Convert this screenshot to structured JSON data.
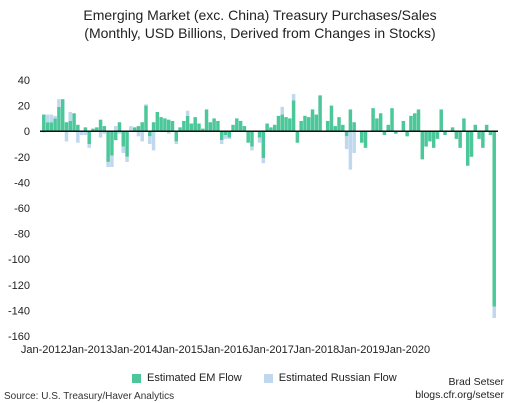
{
  "chart_data": {
    "type": "bar",
    "title": "Emerging Market (exc. China) Treasury Purchases/Sales",
    "subtitle": "(Monthly, USD Billions, Derived from Changes in Stocks)",
    "xlabel": "",
    "ylabel": "",
    "ylim": [
      -160,
      40
    ],
    "yticks": [
      40,
      20,
      0,
      -20,
      -40,
      -60,
      -80,
      -100,
      -120,
      -140,
      -160
    ],
    "xtick_labels": [
      "Jan-2012",
      "Jan-2013",
      "Jan-2014",
      "Jan-2015",
      "Jan-2016",
      "Jan-2017",
      "Jan-2018",
      "Jan-2019",
      "Jan-2020"
    ],
    "grid": false,
    "legend_position": "bottom",
    "colors": {
      "em": "#4cc79a",
      "russia": "#bfd8ee",
      "zero_line": "#111111"
    },
    "start_month": "Jan-2012",
    "series": [
      {
        "name": "Estimated EM Flow",
        "values": [
          13,
          7,
          7,
          10,
          19,
          25,
          7,
          8,
          14,
          5,
          0,
          3,
          -10,
          2,
          3,
          9,
          4,
          -24,
          -19,
          -7,
          7,
          -12,
          -20,
          0,
          3,
          4,
          7,
          20,
          -4,
          7,
          15,
          11,
          10,
          9,
          8,
          -8,
          3,
          8,
          12,
          6,
          11,
          6,
          2,
          17,
          7,
          10,
          8,
          -7,
          -3,
          -5,
          5,
          10,
          8,
          4,
          -9,
          -12,
          0,
          -5,
          -21,
          6,
          3,
          5,
          12,
          13,
          11,
          10,
          24,
          -9,
          8,
          12,
          11,
          17,
          13,
          28,
          0,
          8,
          20,
          4,
          11,
          5,
          -4,
          17,
          7,
          0,
          -9,
          -13,
          0,
          18,
          10,
          14,
          -3,
          5,
          18,
          -2,
          0,
          8,
          -4,
          12,
          14,
          17,
          -22,
          -12,
          -8,
          -13,
          -6,
          17,
          -3,
          0,
          3,
          -6,
          -13,
          10,
          -27,
          -20,
          5,
          -6,
          -13,
          5,
          -3,
          -137
        ]
      },
      {
        "name": "Estimated Russian Flow",
        "values": [
          -1,
          6,
          6,
          2,
          6,
          0,
          -8,
          7,
          0,
          -9,
          -3,
          -3,
          -3,
          0,
          0,
          -5,
          -2,
          -4,
          -9,
          4,
          -2,
          -5,
          -4,
          4,
          0,
          -4,
          -8,
          1,
          -6,
          -15,
          0,
          0,
          0,
          -2,
          0,
          -2,
          0,
          0,
          4,
          0,
          0,
          0,
          0,
          0,
          0,
          0,
          0,
          -3,
          -3,
          -1,
          0,
          0,
          0,
          0,
          0,
          -3,
          0,
          -4,
          -4,
          0,
          0,
          0,
          0,
          6,
          0,
          0,
          5,
          0,
          0,
          0,
          0,
          0,
          0,
          0,
          0,
          0,
          0,
          0,
          0,
          0,
          -10,
          -30,
          -17,
          0,
          0,
          0,
          0,
          0,
          0,
          0,
          0,
          0,
          0,
          0,
          0,
          0,
          0,
          0,
          0,
          0,
          0,
          0,
          0,
          0,
          0,
          0,
          0,
          0,
          0,
          0,
          0,
          0,
          0,
          0,
          0,
          0,
          0,
          0,
          0,
          -9
        ]
      }
    ]
  },
  "legend": {
    "em_label": "Estimated EM Flow",
    "russia_label": "Estimated Russian Flow"
  },
  "footer": {
    "source": "Source: U.S. Treasury/Haver Analytics",
    "author": "Brad Setser",
    "site": "blogs.cfr.org/setser"
  }
}
